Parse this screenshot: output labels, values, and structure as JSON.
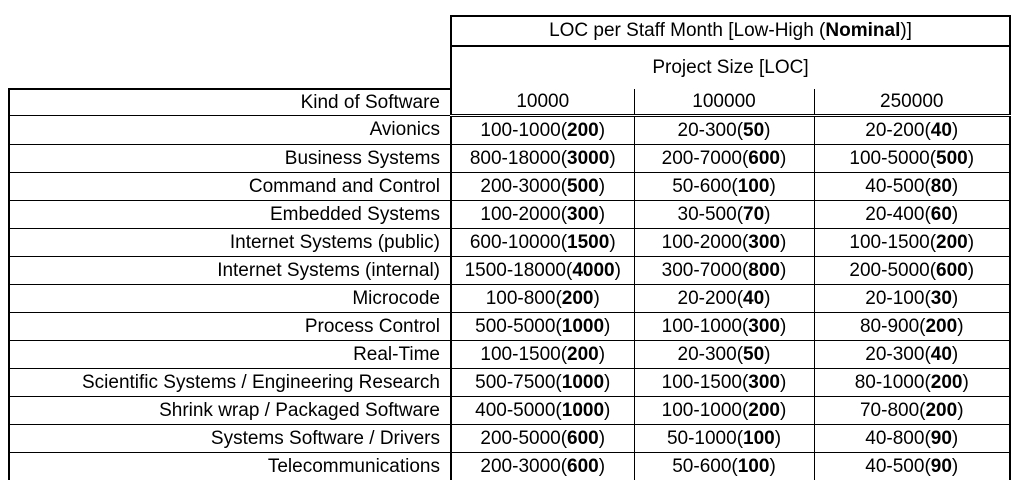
{
  "colors": {
    "border": "#000000",
    "background": "#ffffff",
    "text": "#000000"
  },
  "table": {
    "title": {
      "prefix": "LOC per Staff Month [Low-High (",
      "bold": "Nominal",
      "suffix": ")]"
    },
    "subtitle": "Project Size [LOC]",
    "corner_header": "Kind of Software",
    "size_columns": [
      "10000",
      "100000",
      "250000"
    ],
    "rows": [
      {
        "label": "Avionics",
        "cells": [
          {
            "range": "100-1000",
            "nominal": "200"
          },
          {
            "range": "20-300",
            "nominal": "50"
          },
          {
            "range": "20-200",
            "nominal": "40"
          }
        ]
      },
      {
        "label": "Business Systems",
        "cells": [
          {
            "range": "800-18000",
            "nominal": "3000"
          },
          {
            "range": "200-7000",
            "nominal": "600"
          },
          {
            "range": "100-5000",
            "nominal": "500"
          }
        ]
      },
      {
        "label": "Command and Control",
        "cells": [
          {
            "range": "200-3000",
            "nominal": "500"
          },
          {
            "range": "50-600",
            "nominal": "100"
          },
          {
            "range": "40-500",
            "nominal": "80"
          }
        ]
      },
      {
        "label": "Embedded Systems",
        "cells": [
          {
            "range": "100-2000",
            "nominal": "300"
          },
          {
            "range": "30-500",
            "nominal": "70"
          },
          {
            "range": "20-400",
            "nominal": "60"
          }
        ]
      },
      {
        "label": "Internet Systems (public)",
        "cells": [
          {
            "range": "600-10000",
            "nominal": "1500"
          },
          {
            "range": "100-2000",
            "nominal": "300"
          },
          {
            "range": "100-1500",
            "nominal": "200"
          }
        ]
      },
      {
        "label": "Internet Systems (internal)",
        "cells": [
          {
            "range": "1500-18000",
            "nominal": "4000"
          },
          {
            "range": "300-7000",
            "nominal": "800"
          },
          {
            "range": "200-5000",
            "nominal": "600"
          }
        ]
      },
      {
        "label": "Microcode",
        "cells": [
          {
            "range": "100-800",
            "nominal": "200"
          },
          {
            "range": "20-200",
            "nominal": "40"
          },
          {
            "range": "20-100",
            "nominal": "30"
          }
        ]
      },
      {
        "label": "Process Control",
        "cells": [
          {
            "range": "500-5000",
            "nominal": "1000"
          },
          {
            "range": "100-1000",
            "nominal": "300"
          },
          {
            "range": "80-900",
            "nominal": "200"
          }
        ]
      },
      {
        "label": "Real-Time",
        "cells": [
          {
            "range": "100-1500",
            "nominal": "200"
          },
          {
            "range": "20-300",
            "nominal": "50"
          },
          {
            "range": "20-300",
            "nominal": "40"
          }
        ]
      },
      {
        "label": "Scientific Systems / Engineering Research",
        "cells": [
          {
            "range": "500-7500",
            "nominal": "1000"
          },
          {
            "range": "100-1500",
            "nominal": "300"
          },
          {
            "range": "80-1000",
            "nominal": "200"
          }
        ]
      },
      {
        "label": "Shrink wrap / Packaged Software",
        "cells": [
          {
            "range": "400-5000",
            "nominal": "1000"
          },
          {
            "range": "100-1000",
            "nominal": "200"
          },
          {
            "range": "70-800",
            "nominal": "200"
          }
        ]
      },
      {
        "label": "Systems Software / Drivers",
        "cells": [
          {
            "range": "200-5000",
            "nominal": "600"
          },
          {
            "range": "50-1000",
            "nominal": "100"
          },
          {
            "range": "40-800",
            "nominal": "90"
          }
        ]
      },
      {
        "label": "Telecommunications",
        "cells": [
          {
            "range": "200-3000",
            "nominal": "600"
          },
          {
            "range": "50-600",
            "nominal": "100"
          },
          {
            "range": "40-500",
            "nominal": "90"
          }
        ]
      }
    ]
  }
}
